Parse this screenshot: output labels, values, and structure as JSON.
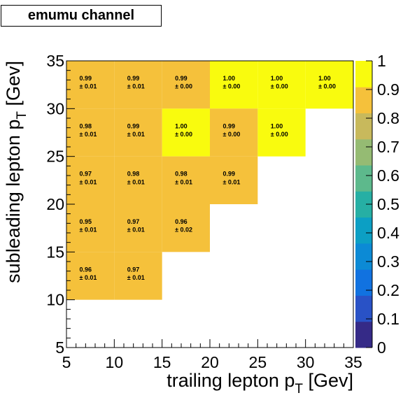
{
  "chart_data": {
    "type": "heatmap",
    "title": "emumu channel",
    "xlabel": "trailing lepton p",
    "xlabel_sub": "T",
    "xlabel_unit": " [Gev]",
    "ylabel": "subleading lepton p",
    "ylabel_sub": "T",
    "ylabel_unit": " [Gev]",
    "xlim": [
      5,
      35
    ],
    "ylim": [
      5,
      35
    ],
    "x_ticks": [
      "5",
      "10",
      "15",
      "20",
      "25",
      "30",
      "35"
    ],
    "y_ticks": [
      "5",
      "10",
      "15",
      "20",
      "25",
      "30",
      "35"
    ],
    "zlim": [
      0,
      1
    ],
    "z_ticks": [
      "0",
      "0.1",
      "0.2",
      "0.3",
      "0.4",
      "0.5",
      "0.6",
      "0.7",
      "0.8",
      "0.9",
      "1"
    ],
    "colorscale": [
      "#352a87",
      "#2952c6",
      "#1172e0",
      "#0c8ad5",
      "#0c9fc4",
      "#26afa4",
      "#5db98c",
      "#95bb73",
      "#c8b95c",
      "#f5c13b",
      "#f9fb0e"
    ],
    "cells": [
      {
        "x": [
          5,
          10
        ],
        "y": [
          30,
          35
        ],
        "value": "0.99",
        "error": "± 0.01",
        "z": 0.99
      },
      {
        "x": [
          10,
          15
        ],
        "y": [
          30,
          35
        ],
        "value": "0.99",
        "error": "± 0.01",
        "z": 0.99
      },
      {
        "x": [
          15,
          20
        ],
        "y": [
          30,
          35
        ],
        "value": "0.99",
        "error": "± 0.00",
        "z": 0.99
      },
      {
        "x": [
          20,
          25
        ],
        "y": [
          30,
          35
        ],
        "value": "1.00",
        "error": "± 0.00",
        "z": 1.0
      },
      {
        "x": [
          25,
          30
        ],
        "y": [
          30,
          35
        ],
        "value": "1.00",
        "error": "± 0.00",
        "z": 1.0
      },
      {
        "x": [
          30,
          35
        ],
        "y": [
          30,
          35
        ],
        "value": "1.00",
        "error": "± 0.00",
        "z": 1.0
      },
      {
        "x": [
          5,
          10
        ],
        "y": [
          25,
          30
        ],
        "value": "0.98",
        "error": "± 0.01",
        "z": 0.98
      },
      {
        "x": [
          10,
          15
        ],
        "y": [
          25,
          30
        ],
        "value": "0.99",
        "error": "± 0.01",
        "z": 0.99
      },
      {
        "x": [
          15,
          20
        ],
        "y": [
          25,
          30
        ],
        "value": "1.00",
        "error": "± 0.00",
        "z": 1.0
      },
      {
        "x": [
          20,
          25
        ],
        "y": [
          25,
          30
        ],
        "value": "0.99",
        "error": "± 0.00",
        "z": 0.99
      },
      {
        "x": [
          25,
          30
        ],
        "y": [
          25,
          30
        ],
        "value": "1.00",
        "error": "± 0.00",
        "z": 1.0
      },
      {
        "x": [
          5,
          10
        ],
        "y": [
          20,
          25
        ],
        "value": "0.97",
        "error": "± 0.01",
        "z": 0.97
      },
      {
        "x": [
          10,
          15
        ],
        "y": [
          20,
          25
        ],
        "value": "0.98",
        "error": "± 0.01",
        "z": 0.98
      },
      {
        "x": [
          15,
          20
        ],
        "y": [
          20,
          25
        ],
        "value": "0.98",
        "error": "± 0.01",
        "z": 0.98
      },
      {
        "x": [
          20,
          25
        ],
        "y": [
          20,
          25
        ],
        "value": "0.99",
        "error": "± 0.01",
        "z": 0.99
      },
      {
        "x": [
          5,
          10
        ],
        "y": [
          15,
          20
        ],
        "value": "0.95",
        "error": "± 0.01",
        "z": 0.95
      },
      {
        "x": [
          10,
          15
        ],
        "y": [
          15,
          20
        ],
        "value": "0.97",
        "error": "± 0.01",
        "z": 0.97
      },
      {
        "x": [
          15,
          20
        ],
        "y": [
          15,
          20
        ],
        "value": "0.96",
        "error": "± 0.02",
        "z": 0.96
      },
      {
        "x": [
          5,
          10
        ],
        "y": [
          10,
          15
        ],
        "value": "0.96",
        "error": "± 0.01",
        "z": 0.96
      },
      {
        "x": [
          10,
          15
        ],
        "y": [
          10,
          15
        ],
        "value": "0.97",
        "error": "± 0.01",
        "z": 0.97
      }
    ]
  }
}
